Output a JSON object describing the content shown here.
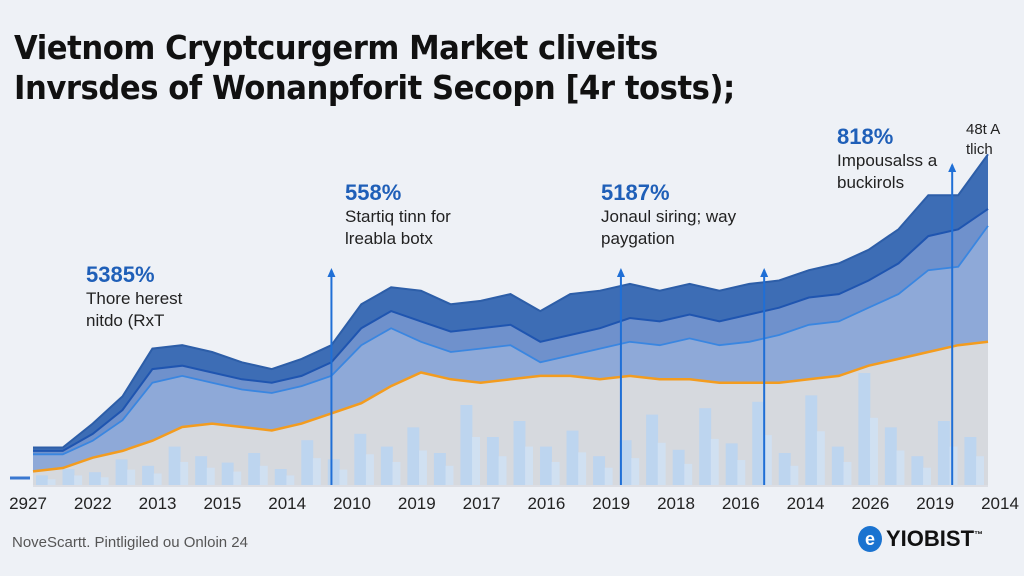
{
  "title_lines": [
    "Vietnom Cryptcurgerm Market cliveits",
    "Invrsdes of Wonanpforit Secopn [4r tosts);"
  ],
  "annotations": [
    {
      "pct": "5385%",
      "lines": [
        "Thore herest",
        "nitdo (RxT"
      ]
    },
    {
      "pct": "558%",
      "lines": [
        "Startiq tinn for",
        "lreabla botx"
      ]
    },
    {
      "pct": "5187%",
      "lines": [
        "Jonaul siring; way",
        "paygation"
      ]
    },
    {
      "pct": "818%",
      "lines": [
        "Impousalss a",
        "buckirols"
      ]
    },
    {
      "pct": "",
      "lines": [
        "48t A",
        "tlich"
      ]
    }
  ],
  "footer": "NoveScartt. Pintligiled ou Onloin 24",
  "logo": {
    "text": "YIOBIST",
    "tm": "™"
  },
  "colors": {
    "dark": "#3d6db5",
    "mid": "#8ea9d8",
    "line": "#3a86e0",
    "orange": "#f39c1f",
    "gray": "#d6d9de",
    "bar": "#b8d3f2"
  },
  "chart_data": {
    "type": "area",
    "title": "Vietnom Cryptcurgerm Market cliveits Invrsdes of Wonanpforit Secopn [4r tosts);",
    "x_tick_labels": [
      "2927",
      "2022",
      "2013",
      "2015",
      "2014",
      "2010",
      "2019",
      "2017",
      "2016",
      "2019",
      "2018",
      "2016",
      "2014",
      "2026",
      "2019",
      "2014"
    ],
    "ylim": [
      0,
      110
    ],
    "grid": false,
    "series": [
      {
        "name": "upper band",
        "values": [
          11,
          11,
          18,
          26,
          40,
          41,
          39,
          36,
          34,
          37,
          41,
          53,
          58,
          57,
          53,
          54,
          56,
          51,
          56,
          57,
          59,
          57,
          59,
          57,
          59,
          60,
          63,
          65,
          69,
          75,
          85,
          85,
          97
        ]
      },
      {
        "name": "middle band",
        "values": [
          10,
          10,
          15,
          22,
          34,
          35,
          33,
          31,
          30,
          32,
          36,
          46,
          51,
          48,
          45,
          46,
          47,
          42,
          44,
          46,
          49,
          48,
          50,
          48,
          50,
          52,
          55,
          56,
          60,
          65,
          73,
          75,
          81
        ]
      },
      {
        "name": "light line",
        "values": [
          9,
          9,
          13,
          19,
          30,
          32,
          30,
          28,
          27,
          29,
          32,
          41,
          46,
          42,
          39,
          40,
          41,
          36,
          38,
          40,
          42,
          41,
          43,
          41,
          42,
          44,
          47,
          48,
          52,
          56,
          63,
          64,
          76
        ]
      },
      {
        "name": "orange",
        "values": [
          4,
          5,
          8,
          10,
          13,
          17,
          18,
          17,
          16,
          18,
          21,
          24,
          29,
          33,
          31,
          30,
          31,
          32,
          32,
          31,
          32,
          31,
          31,
          30,
          30,
          30,
          31,
          32,
          35,
          37,
          39,
          41,
          42
        ]
      }
    ],
    "volume": [
      3,
      5,
      4,
      8,
      6,
      12,
      9,
      7,
      10,
      5,
      14,
      8,
      16,
      12,
      18,
      10,
      25,
      15,
      20,
      12,
      17,
      9,
      14,
      22,
      11,
      24,
      13,
      26,
      10,
      28,
      12,
      35,
      18,
      9,
      20,
      15
    ],
    "markers": [
      {
        "index": 10,
        "label": "558%"
      },
      {
        "index": 19.7,
        "label": "5187%"
      },
      {
        "index": 24.5,
        "label": "818%"
      },
      {
        "index": 30.8,
        "label": "48t A"
      }
    ]
  }
}
